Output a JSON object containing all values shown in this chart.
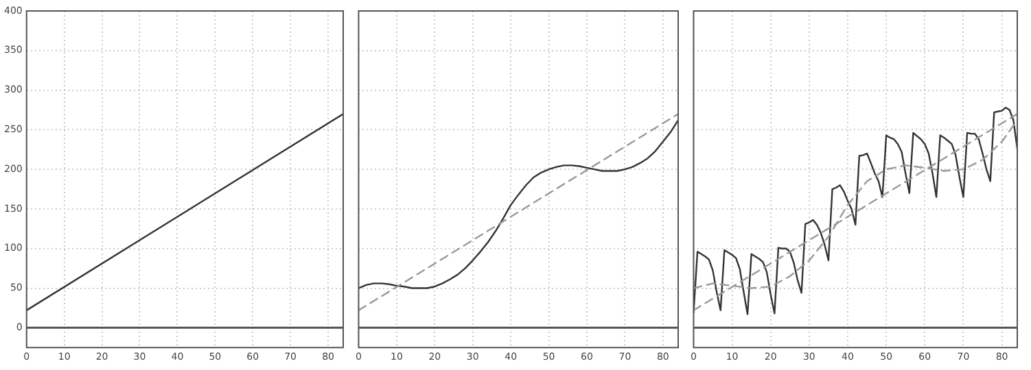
{
  "chart_data": [
    {
      "type": "line",
      "xlim": [
        0,
        84
      ],
      "xticks": [
        0,
        10,
        20,
        30,
        40,
        50,
        60,
        70,
        80
      ],
      "ylim": [
        -25,
        400
      ],
      "yticks": [
        0,
        50,
        100,
        150,
        200,
        250,
        300,
        350,
        400
      ],
      "grid": true,
      "legend": false,
      "marker": "none",
      "ref_lines": [
        {
          "axis": "y",
          "value": 0,
          "color": "#555555"
        }
      ],
      "series": [
        {
          "color": "#333333",
          "line_style": "solid",
          "x": [
            0,
            84
          ],
          "values": [
            22,
            270
          ]
        }
      ]
    },
    {
      "type": "line",
      "xlim": [
        0,
        84
      ],
      "xticks": [
        0,
        10,
        20,
        30,
        40,
        50,
        60,
        70,
        80
      ],
      "ylim": [
        -25,
        400
      ],
      "yticks": [
        0,
        50,
        100,
        150,
        200,
        250,
        300,
        350,
        400
      ],
      "grid": true,
      "legend": false,
      "marker": "none",
      "tick_labels": "x",
      "ref_lines": [
        {
          "axis": "y",
          "value": 0,
          "color": "#555555"
        }
      ],
      "series": [
        {
          "color": "#999999",
          "line_style": "dashed",
          "x": [
            0,
            84
          ],
          "values": [
            22,
            270
          ]
        },
        {
          "color": "#333333",
          "line_style": "solid",
          "x": [
            0,
            2,
            4,
            6,
            8,
            10,
            12,
            14,
            16,
            18,
            20,
            22,
            24,
            26,
            28,
            30,
            32,
            34,
            36,
            38,
            40,
            42,
            44,
            46,
            48,
            50,
            52,
            54,
            56,
            58,
            60,
            62,
            64,
            66,
            68,
            70,
            72,
            74,
            76,
            78,
            80,
            82,
            84
          ],
          "values": [
            50,
            54,
            56,
            56,
            55,
            53,
            52,
            50,
            50,
            50,
            52,
            56,
            61,
            67,
            75,
            85,
            96,
            108,
            122,
            138,
            155,
            168,
            180,
            190,
            196,
            200,
            203,
            205,
            205,
            204,
            202,
            200,
            198,
            198,
            198,
            200,
            203,
            208,
            214,
            223,
            235,
            247,
            262
          ]
        }
      ]
    },
    {
      "type": "line",
      "xlim": [
        0,
        84
      ],
      "xticks": [
        0,
        10,
        20,
        30,
        40,
        50,
        60,
        70,
        80
      ],
      "ylim": [
        -25,
        400
      ],
      "yticks": [
        0,
        50,
        100,
        150,
        200,
        250,
        300,
        350,
        400
      ],
      "grid": true,
      "legend": false,
      "marker": "none",
      "tick_labels": "x",
      "ref_lines": [
        {
          "axis": "y",
          "value": 0,
          "color": "#555555"
        }
      ],
      "series": [
        {
          "color": "#999999",
          "line_style": "dashed",
          "x": [
            0,
            84
          ],
          "values": [
            22,
            270
          ]
        },
        {
          "color": "#999999",
          "line_style": "dashed",
          "x": [
            0,
            5,
            10,
            15,
            20,
            25,
            30,
            35,
            40,
            45,
            50,
            55,
            60,
            65,
            70,
            75,
            80,
            84
          ],
          "values": [
            50,
            56,
            53,
            50,
            52,
            65,
            85,
            115,
            155,
            185,
            200,
            205,
            202,
            198,
            200,
            212,
            235,
            262
          ]
        },
        {
          "color": "#333333",
          "line_style": "solid",
          "x": [
            0,
            1,
            2,
            3,
            4,
            5,
            6,
            7,
            8,
            9,
            10,
            11,
            12,
            13,
            14,
            15,
            16,
            17,
            18,
            19,
            20,
            21,
            22,
            23,
            24,
            25,
            26,
            27,
            28,
            29,
            30,
            31,
            32,
            33,
            34,
            35,
            36,
            37,
            38,
            39,
            40,
            41,
            42,
            43,
            44,
            45,
            46,
            47,
            48,
            49,
            50,
            51,
            52,
            53,
            54,
            55,
            56,
            57,
            58,
            59,
            60,
            61,
            62,
            63,
            64,
            65,
            66,
            67,
            68,
            69,
            70,
            71,
            72,
            73,
            74,
            75,
            76,
            77,
            78,
            79,
            80,
            81,
            82,
            83,
            84
          ],
          "values": [
            19,
            96,
            93,
            90,
            86,
            72,
            45,
            22,
            98,
            95,
            92,
            88,
            74,
            45,
            17,
            93,
            90,
            87,
            83,
            70,
            42,
            18,
            101,
            100,
            100,
            96,
            82,
            60,
            44,
            131,
            133,
            136,
            130,
            120,
            105,
            85,
            175,
            177,
            180,
            172,
            160,
            150,
            130,
            217,
            218,
            220,
            208,
            195,
            185,
            165,
            243,
            240,
            238,
            232,
            222,
            195,
            170,
            246,
            242,
            238,
            232,
            220,
            195,
            165,
            243,
            240,
            236,
            232,
            218,
            190,
            165,
            246,
            245,
            245,
            238,
            220,
            200,
            185,
            272,
            273,
            274,
            278,
            275,
            262,
            226
          ]
        }
      ]
    }
  ]
}
